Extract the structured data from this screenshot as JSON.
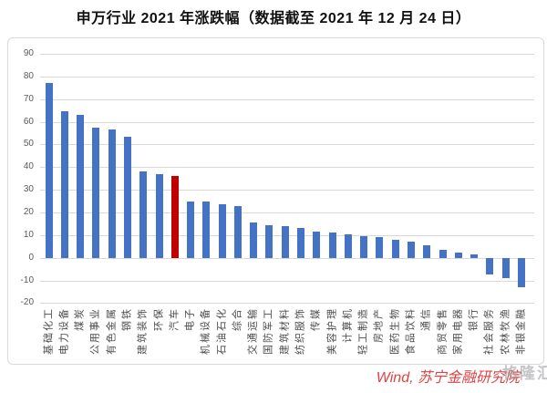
{
  "chart_data": {
    "type": "bar",
    "title": "申万行业 2021 年涨跌幅（数据截至 2021 年 12 月 24 日）",
    "categories": [
      "基础化工",
      "电力设备",
      "煤炭",
      "公用事业",
      "有色金属",
      "钢铁",
      "建筑装饰",
      "环保",
      "汽车",
      "电子",
      "机械设备",
      "石油石化",
      "综合",
      "交通运输",
      "国防军工",
      "建筑材料",
      "纺织服饰",
      "传媒",
      "美容护理",
      "计算机",
      "轻工制造",
      "房地产",
      "医药生物",
      "食品饮料",
      "通信",
      "商贸零售",
      "家用电器",
      "银行",
      "社会服务",
      "农林牧渔",
      "非银金融"
    ],
    "values": [
      77,
      64.5,
      63,
      57.5,
      56.5,
      53.5,
      38,
      37,
      36,
      25,
      25,
      23.5,
      23,
      15.5,
      14.5,
      14,
      13,
      11.5,
      11,
      10.5,
      9.5,
      9,
      8,
      7,
      5.5,
      3.5,
      2.5,
      1.5,
      -7.5,
      -9,
      -13
    ],
    "bar_color": "#4472C4",
    "highlight_category": "汽车",
    "highlight_color": "#C00000",
    "ylim": [
      -20,
      90
    ],
    "yticks": [
      90,
      80,
      70,
      60,
      50,
      40,
      30,
      20,
      10,
      0,
      -10,
      -20
    ],
    "grid": true,
    "gridline_color": "#D9D9D9",
    "axis_label_color": "#595959",
    "legend": false
  },
  "source_note": "Wind, 苏宁金融研究院",
  "watermark_logo": "格隆汇"
}
